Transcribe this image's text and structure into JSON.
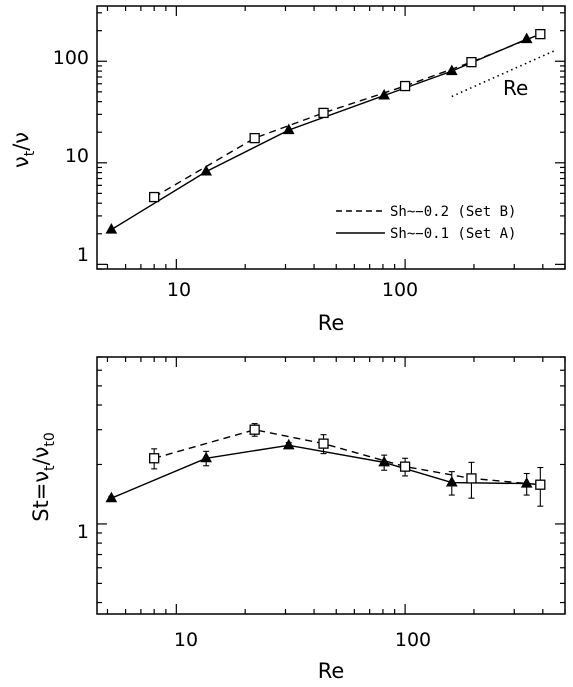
{
  "chart_data": [
    {
      "type": "line",
      "xlabel": "Re",
      "ylabel_main": "ν",
      "ylabel_sub": "t",
      "ylabel_tail": "/ν",
      "xscale": "log",
      "yscale": "log",
      "xlim": [
        4.5,
        500
      ],
      "ylim": [
        0.9,
        350
      ],
      "x_ticks": [
        10,
        100
      ],
      "x_tick_labels": [
        "10",
        "100"
      ],
      "y_ticks": [
        1,
        10,
        100
      ],
      "y_tick_labels": [
        "1",
        "10",
        "100"
      ],
      "series": [
        {
          "name": "Sh~−0.2 (Set B)",
          "line_style": "dashed",
          "marker": "square",
          "x": [
            8,
            22,
            44,
            100,
            195,
            390
          ],
          "y": [
            4.6,
            17.5,
            31,
            57,
            98,
            185
          ]
        },
        {
          "name": "Sh~−0.1 (Set A)",
          "line_style": "solid",
          "marker": "triangle",
          "x": [
            5.2,
            13.5,
            31,
            81,
            160,
            340
          ],
          "y": [
            2.2,
            8.2,
            21,
            46,
            80,
            165
          ]
        }
      ],
      "reference_line": {
        "label": "Re",
        "style": "dotted",
        "x": [
          160,
          450
        ],
        "y": [
          45,
          127
        ]
      },
      "legend_position": "bottom-right"
    },
    {
      "type": "line",
      "xlabel": "Re",
      "ylabel_main": "St=ν",
      "ylabel_sub1": "t",
      "ylabel_mid": "/ν",
      "ylabel_sub2": "t0",
      "xscale": "log",
      "yscale": "log",
      "xlim": [
        4.5,
        500
      ],
      "ylim": [
        0.35,
        7
      ],
      "x_ticks": [
        10,
        100
      ],
      "x_tick_labels": [
        "10",
        "100"
      ],
      "y_ticks": [
        1
      ],
      "y_tick_labels": [
        "1"
      ],
      "series": [
        {
          "name": "Set B",
          "line_style": "dashed",
          "marker": "square",
          "x": [
            8,
            22,
            44,
            100,
            195,
            390
          ],
          "y": [
            2.15,
            3.0,
            2.55,
            1.95,
            1.7,
            1.58
          ],
          "err": [
            0.25,
            0.22,
            0.28,
            0.2,
            0.35,
            0.35
          ]
        },
        {
          "name": "Set A",
          "line_style": "solid",
          "marker": "triangle",
          "x": [
            5.2,
            13.5,
            31,
            81,
            160,
            340
          ],
          "y": [
            1.35,
            2.15,
            2.5,
            2.05,
            1.62,
            1.6
          ],
          "err": [
            0.03,
            0.18,
            0.08,
            0.18,
            0.22,
            0.2
          ]
        }
      ]
    }
  ],
  "legend": {
    "entries": [
      {
        "label": "Sh~−0.2 (Set B)",
        "style": "dashed"
      },
      {
        "label": "Sh~−0.1 (Set A)",
        "style": "solid"
      }
    ]
  }
}
